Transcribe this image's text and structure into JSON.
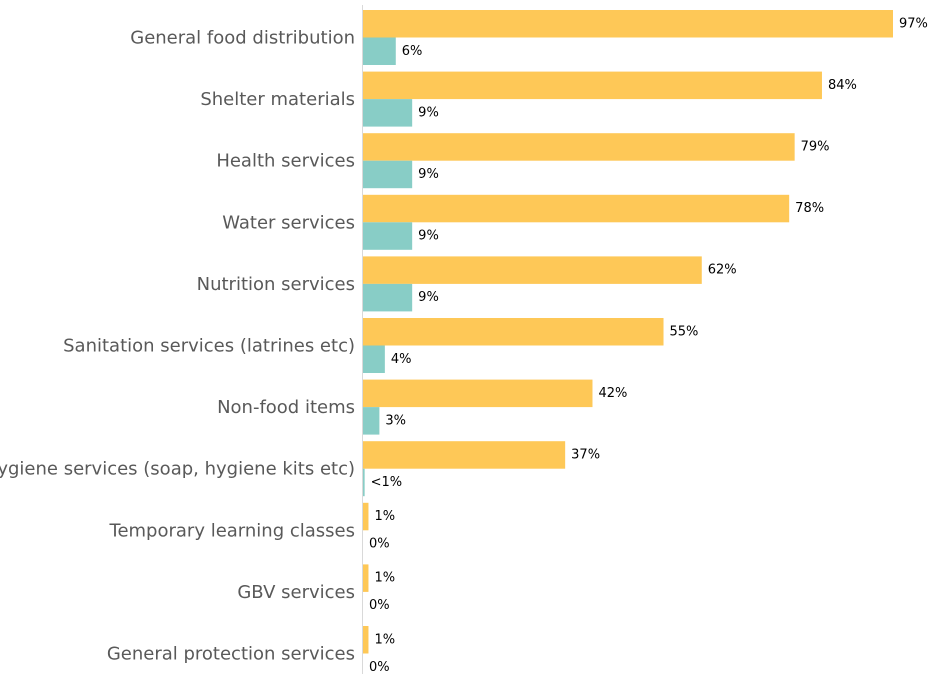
{
  "chart_data": {
    "type": "bar",
    "orientation": "horizontal",
    "categories": [
      "General food distribution",
      "Shelter materials",
      "Health services",
      "Water services",
      "Nutrition services",
      "Sanitation services (latrines etc)",
      "Non-food items",
      "Hygiene services (soap, hygiene kits etc)",
      "Temporary learning classes",
      "GBV services",
      "General protection services"
    ],
    "series": [
      {
        "color": "#fec857",
        "values": [
          97,
          84,
          79,
          78,
          62,
          55,
          42,
          37,
          1,
          1,
          1
        ],
        "value_labels": [
          "97%",
          "84%",
          "79%",
          "78%",
          "62%",
          "55%",
          "42%",
          "37%",
          "1%",
          "1%",
          "1%"
        ]
      },
      {
        "color": "#88cdc6",
        "values": [
          6,
          9,
          9,
          9,
          9,
          4,
          3,
          0.3,
          0,
          0,
          0
        ],
        "value_labels": [
          "6%",
          "9%",
          "9%",
          "9%",
          "9%",
          "4%",
          "3%",
          "<1%",
          "0%",
          "0%",
          "0%"
        ]
      }
    ]
  }
}
